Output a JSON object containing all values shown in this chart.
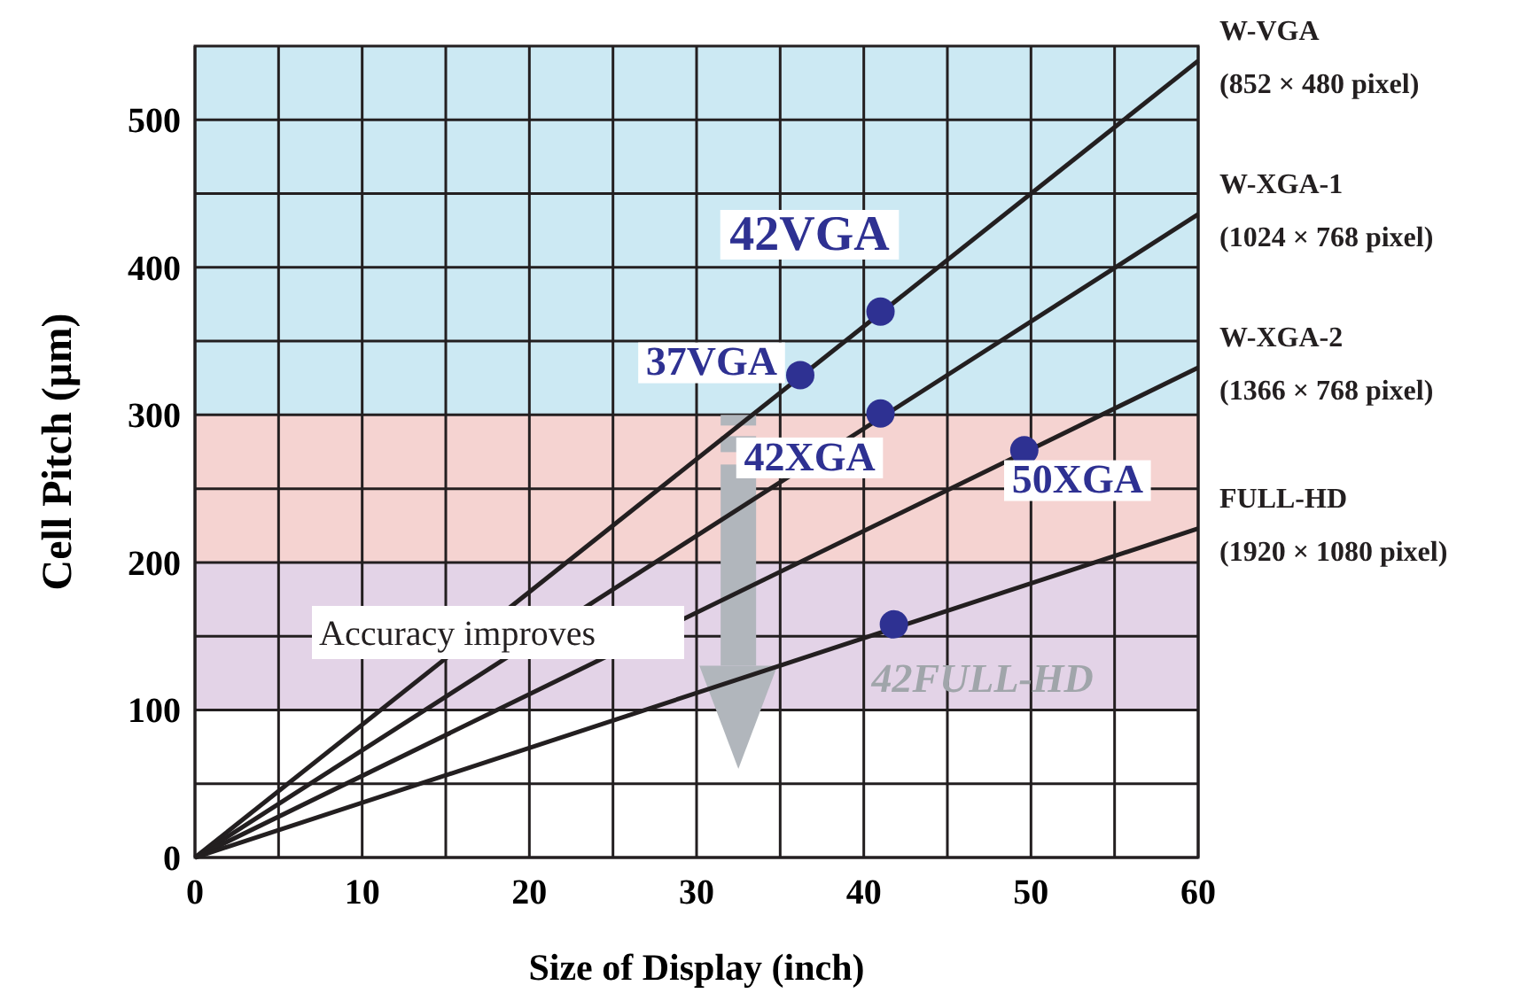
{
  "chart_data": {
    "type": "line",
    "xlabel": "Size of Display (inch)",
    "ylabel": "Cell Pitch (µm)",
    "xlim": [
      0,
      60
    ],
    "ylim": [
      0,
      550
    ],
    "xticks": [
      0,
      {
        "value": 5,
        "label": null
      },
      10,
      {
        "value": 15,
        "label": null
      },
      20,
      {
        "value": 25,
        "label": null
      },
      30,
      {
        "value": 35,
        "label": null
      },
      40,
      {
        "value": 45,
        "label": null
      },
      50,
      {
        "value": 55,
        "label": null
      },
      60
    ],
    "yticks": [
      0,
      {
        "value": 50,
        "label": null
      },
      100,
      {
        "value": 150,
        "label": null
      },
      200,
      {
        "value": 250,
        "label": null
      },
      300,
      {
        "value": 350,
        "label": null
      },
      400,
      {
        "value": 450,
        "label": null
      },
      500
    ],
    "grid": true,
    "bands": [
      {
        "axis": "y",
        "from": 300,
        "to": 550,
        "color": "#cce9f3"
      },
      {
        "axis": "y",
        "from": 200,
        "to": 300,
        "color": "#f5d3d1"
      },
      {
        "axis": "y",
        "from": 100,
        "to": 200,
        "color": "#e3d3e7"
      }
    ],
    "series": [
      {
        "name": "W-VGA (852 × 480 pixel)",
        "color": "#231f20",
        "x": [
          0,
          60
        ],
        "values": [
          0,
          540
        ]
      },
      {
        "name": "W-XGA-1 (1024 × 768 pixel)",
        "color": "#231f20",
        "x": [
          0,
          60
        ],
        "values": [
          0,
          436
        ]
      },
      {
        "name": "W-XGA-2 (1366 × 768 pixel)",
        "color": "#231f20",
        "x": [
          0,
          60
        ],
        "values": [
          0,
          332
        ]
      },
      {
        "name": "FULL-HD (1920 × 1080 pixel)",
        "color": "#231f20",
        "x": [
          0,
          60
        ],
        "values": [
          0,
          223
        ]
      },
      {
        "type": "scatter",
        "marker": "circle",
        "color": "#2e3192",
        "x": [
          36.2,
          41,
          41,
          49.6,
          41.8
        ],
        "values": [
          327,
          370,
          301,
          276,
          158
        ]
      }
    ],
    "annotations": [
      {
        "text": "37VGA",
        "x": 36.2,
        "y": 327
      },
      {
        "text": "42VGA",
        "x": 41,
        "y": 370
      },
      {
        "text": "42XGA",
        "x": 41,
        "y": 301
      },
      {
        "text": "50XGA",
        "x": 49.6,
        "y": 276
      },
      {
        "text": "42FULL-HD",
        "x": 41.8,
        "y": 158
      },
      "Accuracy improves"
    ]
  }
}
